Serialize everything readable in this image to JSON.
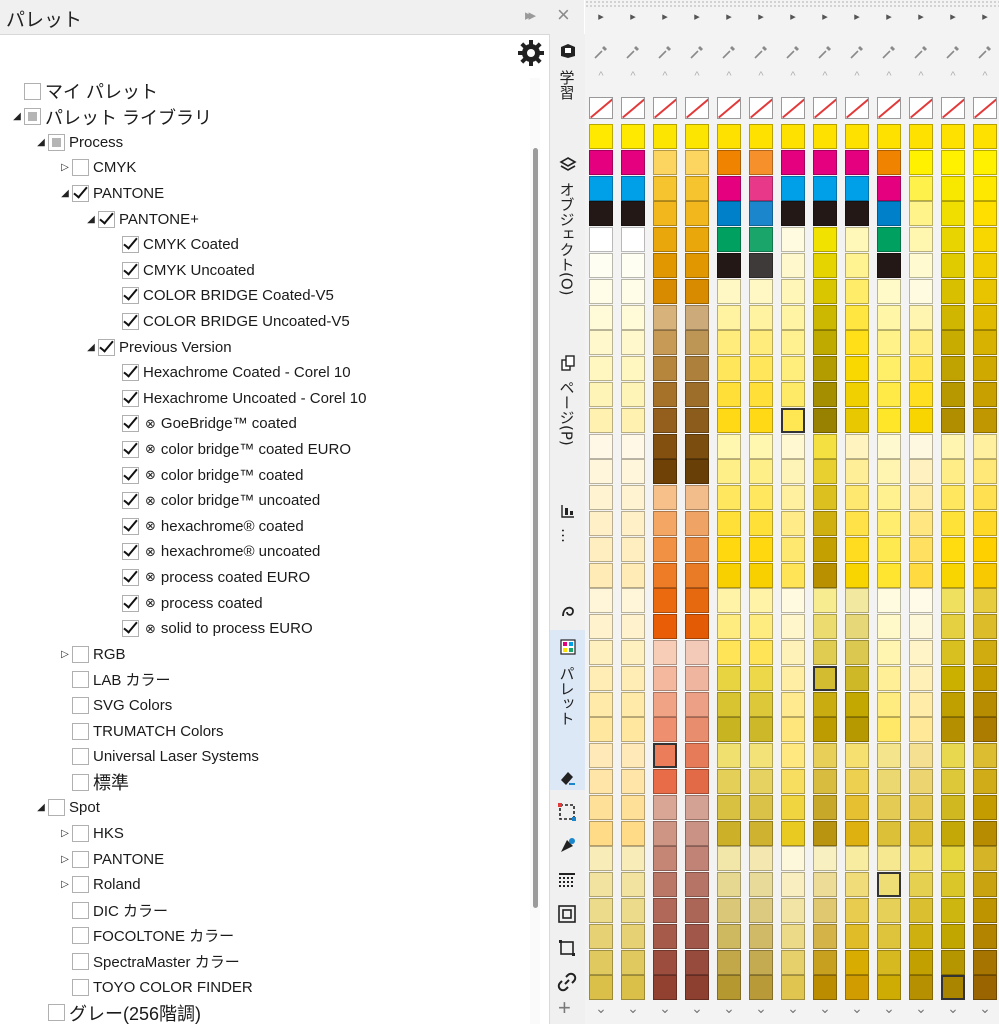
{
  "panel": {
    "title": "パレット",
    "collapse_icon": "double-chevron-right-icon",
    "close_icon": "close-icon",
    "settings_icon": "gear-icon"
  },
  "tree": [
    {
      "label": "マイ パレット",
      "level": 0,
      "expander": "none",
      "check": "unchecked",
      "big": true
    },
    {
      "label": "パレット ライブラリ",
      "level": 0,
      "expander": "expanded",
      "check": "partial",
      "big": true
    },
    {
      "label": "Process",
      "level": 1,
      "expander": "expanded",
      "check": "partial"
    },
    {
      "label": "CMYK",
      "level": 2,
      "expander": "collapsed",
      "check": "unchecked"
    },
    {
      "label": "PANTONE",
      "level": 2,
      "expander": "expanded",
      "check": "checked"
    },
    {
      "label": "PANTONE+",
      "level": 3,
      "expander": "expanded",
      "check": "checked"
    },
    {
      "label": "CMYK Coated",
      "level": 4,
      "expander": "none",
      "check": "checked"
    },
    {
      "label": "CMYK Uncoated",
      "level": 4,
      "expander": "none",
      "check": "checked"
    },
    {
      "label": "COLOR BRIDGE Coated-V5",
      "level": 4,
      "expander": "none",
      "check": "checked"
    },
    {
      "label": "COLOR BRIDGE Uncoated-V5",
      "level": 4,
      "expander": "none",
      "check": "checked"
    },
    {
      "label": "Previous Version",
      "level": 3,
      "expander": "expanded",
      "check": "checked"
    },
    {
      "label": "Hexachrome Coated - Corel 10",
      "level": 4,
      "expander": "none",
      "check": "checked"
    },
    {
      "label": "Hexachrome Uncoated - Corel 10",
      "level": 4,
      "expander": "none",
      "check": "checked"
    },
    {
      "label": "GoeBridge™ coated",
      "level": 4,
      "expander": "none",
      "check": "checked",
      "legacy": true
    },
    {
      "label": "color bridge™ coated EURO",
      "level": 4,
      "expander": "none",
      "check": "checked",
      "legacy": true
    },
    {
      "label": "color bridge™ coated",
      "level": 4,
      "expander": "none",
      "check": "checked",
      "legacy": true
    },
    {
      "label": "color bridge™ uncoated",
      "level": 4,
      "expander": "none",
      "check": "checked",
      "legacy": true
    },
    {
      "label": "hexachrome® coated",
      "level": 4,
      "expander": "none",
      "check": "checked",
      "legacy": true
    },
    {
      "label": "hexachrome® uncoated",
      "level": 4,
      "expander": "none",
      "check": "checked",
      "legacy": true
    },
    {
      "label": "process coated EURO",
      "level": 4,
      "expander": "none",
      "check": "checked",
      "legacy": true
    },
    {
      "label": "process coated",
      "level": 4,
      "expander": "none",
      "check": "checked",
      "legacy": true
    },
    {
      "label": "solid to process EURO",
      "level": 4,
      "expander": "none",
      "check": "checked",
      "legacy": true
    },
    {
      "label": "RGB",
      "level": 2,
      "expander": "collapsed",
      "check": "unchecked"
    },
    {
      "label": "LAB カラー",
      "level": 2,
      "expander": "none",
      "check": "unchecked"
    },
    {
      "label": "SVG Colors",
      "level": 2,
      "expander": "none",
      "check": "unchecked"
    },
    {
      "label": "TRUMATCH Colors",
      "level": 2,
      "expander": "none",
      "check": "unchecked"
    },
    {
      "label": "Universal Laser Systems",
      "level": 2,
      "expander": "none",
      "check": "unchecked"
    },
    {
      "label": "標準",
      "level": 2,
      "expander": "none",
      "check": "unchecked",
      "big": true
    },
    {
      "label": "Spot",
      "level": 1,
      "expander": "expanded",
      "check": "unchecked"
    },
    {
      "label": "HKS",
      "level": 2,
      "expander": "collapsed",
      "check": "unchecked"
    },
    {
      "label": "PANTONE",
      "level": 2,
      "expander": "collapsed",
      "check": "unchecked"
    },
    {
      "label": "Roland",
      "level": 2,
      "expander": "collapsed",
      "check": "unchecked"
    },
    {
      "label": "DIC カラー",
      "level": 2,
      "expander": "none",
      "check": "unchecked"
    },
    {
      "label": "FOCOLTONE カラー",
      "level": 2,
      "expander": "none",
      "check": "unchecked"
    },
    {
      "label": "SpectraMaster カラー",
      "level": 2,
      "expander": "none",
      "check": "unchecked"
    },
    {
      "label": "TOYO COLOR FINDER",
      "level": 2,
      "expander": "none",
      "check": "unchecked"
    },
    {
      "label": "グレー(256階調)",
      "level": 1,
      "expander": "none",
      "check": "unchecked",
      "big": true
    }
  ],
  "tabs": {
    "learn": "学習",
    "objects": "オブジェクト(O)",
    "pages": "ページ(P)",
    "more": "…",
    "palette": "パレット"
  },
  "tab_icons": [
    "cap-icon",
    "layers-icon",
    "pages-icon",
    "align-icon",
    "curve-icon",
    "palette-icon"
  ],
  "tool_icons": [
    "eraser-icon",
    "transform-icon",
    "fill-icon",
    "grid-icon",
    "frame-icon",
    "crop-icon",
    "link-icon",
    "add-icon"
  ],
  "palette_columns": [
    [
      "#ffe900",
      "#e4007f",
      "#00a0e9",
      "#231815",
      "#ffffff",
      "#fffef3",
      "#fffde8",
      "#fffbd8",
      "#fff8cc",
      "#fff6c0",
      "#fff4b8",
      "#fff2b0",
      "#fff8e6",
      "#fff6dc",
      "#fff3d2",
      "#fff0c8",
      "#ffeebf",
      "#ffebb5",
      "#fff5d8",
      "#fff2cc",
      "#fff0c0",
      "#ffedb5",
      "#ffeaaa",
      "#ffe7a0",
      "#ffe9b8",
      "#ffe5a8",
      "#ffe098",
      "#ffdb88",
      "#f8ecb8",
      "#f2e3a0",
      "#ecdb8a",
      "#e6d274",
      "#e0c95e",
      "#dac048"
    ],
    [
      "#ffe900",
      "#e4007f",
      "#00a0e9",
      "#231815",
      "#ffffff",
      "#fffef3",
      "#fffde8",
      "#fffbd8",
      "#fff8cc",
      "#fff6c0",
      "#fff4b8",
      "#fff2b0",
      "#fff8e6",
      "#fff6dc",
      "#fff3d2",
      "#fff0c8",
      "#ffeebf",
      "#ffebb5",
      "#fff5d8",
      "#fff2cc",
      "#fff0c0",
      "#ffedb5",
      "#ffeaaa",
      "#ffe7a0",
      "#ffe9b8",
      "#ffe5a8",
      "#ffe098",
      "#ffdb88",
      "#f8ecb8",
      "#f2e3a0",
      "#ecdb8a",
      "#e6d274",
      "#e0c95e",
      "#dac048"
    ],
    [
      "#fce500",
      "#fbd560",
      "#f6c42e",
      "#f1b71c",
      "#e9a70c",
      "#e19800",
      "#d98b00",
      "#d7b27a",
      "#c79a55",
      "#b6863c",
      "#a6722a",
      "#945f1c",
      "#83500f",
      "#6f4107",
      "#f7c08a",
      "#f4a765",
      "#f19144",
      "#ee7c26",
      "#eb6a10",
      "#e85d05",
      "#f7cdb7",
      "#f4b89f",
      "#f1a386",
      "#ee8f6f",
      "#eb7d5a",
      "#e86c47",
      "#d9a594",
      "#cf9584",
      "#c58675",
      "#bb7766",
      "#b16858",
      "#a65a4a",
      "#9c4d3d",
      "#924030"
    ],
    [
      "#fce500",
      "#fbd560",
      "#f6c42e",
      "#f1b71c",
      "#e9a70c",
      "#e19800",
      "#d98b00",
      "#ccaa7a",
      "#bd9555",
      "#ad813c",
      "#9d6e2a",
      "#8c5c1c",
      "#7b4e0f",
      "#684007",
      "#f2bd8a",
      "#efa465",
      "#ec8e44",
      "#e97a26",
      "#e66910",
      "#e35c05",
      "#f2cab7",
      "#efb59f",
      "#eca186",
      "#e98d6f",
      "#e67b5a",
      "#e36a47",
      "#d4a294",
      "#ca9284",
      "#c08375",
      "#b67466",
      "#ac6658",
      "#a1584a",
      "#974b3d",
      "#8d3f30"
    ],
    [
      "#ffe100",
      "#f08300",
      "#e4007f",
      "#0080c8",
      "#00a160",
      "#231815",
      "#fff8c4",
      "#fff2a0",
      "#ffec7c",
      "#ffe65a",
      "#ffdf38",
      "#ffd816",
      "#fff6b0",
      "#ffef88",
      "#ffe860",
      "#ffe038",
      "#ffd810",
      "#f8d000",
      "#fff3a8",
      "#ffec80",
      "#ffe458",
      "#e8d440",
      "#d8c430",
      "#c8b420",
      "#f0e070",
      "#e4d058",
      "#d8c040",
      "#ccb028",
      "#f2e6a8",
      "#e6d890",
      "#dac878",
      "#ceb860",
      "#c2a848",
      "#b69830"
    ],
    [
      "#ffe100",
      "#f5902a",
      "#e8388a",
      "#1b86cc",
      "#1aa66a",
      "#3e3a39",
      "#fff8c4",
      "#fff2a0",
      "#ffec7c",
      "#ffe65a",
      "#ffdf38",
      "#ffd816",
      "#fff6b0",
      "#ffef88",
      "#ffe860",
      "#ffe038",
      "#ffd810",
      "#f8d000",
      "#fff3a8",
      "#ffec80",
      "#ffe458",
      "#ecd848",
      "#dcc838",
      "#ccb828",
      "#f2e278",
      "#e6d260",
      "#dac248",
      "#ceb230",
      "#f4e8b0",
      "#e8da98",
      "#dcca80",
      "#d0ba68",
      "#c4aa50",
      "#b89a38"
    ],
    [
      "#ffe100",
      "#e4007f",
      "#00a0e9",
      "#231815",
      "#fffbe0",
      "#fff8cc",
      "#fff6b8",
      "#fff3a4",
      "#fff090",
      "#ffed7c",
      "#ffea68",
      "#ffe754",
      "#fff8d0",
      "#fff4b8",
      "#fff0a0",
      "#ffec88",
      "#ffe870",
      "#ffe458",
      "#fffae0",
      "#fff6cc",
      "#fff2b8",
      "#ffeea4",
      "#ffea90",
      "#ffe67c",
      "#ffe880",
      "#f8de60",
      "#f0d440",
      "#e8ca20",
      "#fdf7dc",
      "#f8eec0",
      "#f2e4a4",
      "#ecda88",
      "#e6d06c",
      "#e0c650"
    ],
    [
      "#ffe100",
      "#e4007f",
      "#00a0e9",
      "#231815",
      "#f2e200",
      "#e6d400",
      "#d9c600",
      "#ccb800",
      "#bfaa00",
      "#b29c00",
      "#a58e00",
      "#988000",
      "#f4e040",
      "#e8d030",
      "#dcc020",
      "#d0b010",
      "#c4a000",
      "#b89000",
      "#f8ec90",
      "#ecdc70",
      "#e0cc50",
      "#d4bc30",
      "#c8ac10",
      "#bc9c00",
      "#e8d058",
      "#d8bc40",
      "#c8a828",
      "#b89410",
      "#f8f0c0",
      "#ecdc98",
      "#e0c870",
      "#d4b448",
      "#c8a020",
      "#bc8c00"
    ],
    [
      "#ffe100",
      "#e4007f",
      "#00a0e9",
      "#231815",
      "#fff8b8",
      "#fff290",
      "#ffec68",
      "#ffe640",
      "#ffe018",
      "#f8d800",
      "#f0d000",
      "#e8c800",
      "#fff4c0",
      "#ffee98",
      "#ffe870",
      "#ffe248",
      "#ffdc20",
      "#f8d400",
      "#f2e8a0",
      "#e6d878",
      "#dac850",
      "#ceb828",
      "#c2a800",
      "#b69800",
      "#f6e070",
      "#eed050",
      "#e6c030",
      "#deb010",
      "#f8eca0",
      "#f0dc78",
      "#e8cc50",
      "#e0bc28",
      "#d8ac00",
      "#d09c00"
    ],
    [
      "#ffe100",
      "#f08300",
      "#e4007f",
      "#0080c8",
      "#00a160",
      "#231815",
      "#fffac8",
      "#fff6a8",
      "#fff288",
      "#ffee68",
      "#ffea48",
      "#ffe628",
      "#fff9d0",
      "#fff5b0",
      "#fff190",
      "#ffed70",
      "#ffe950",
      "#ffe530",
      "#fffbe0",
      "#fff8c8",
      "#fff4b0",
      "#fff098",
      "#ffec80",
      "#ffe868",
      "#f4e48c",
      "#ecd870",
      "#e4cc54",
      "#dcc038",
      "#f6e890",
      "#eedc74",
      "#e6d058",
      "#dec43c",
      "#d6b820",
      "#ceac04"
    ],
    [
      "#ffe100",
      "#fff100",
      "#fff14c",
      "#fff38a",
      "#fff6b0",
      "#fffad0",
      "#fffbe0",
      "#fff4b0",
      "#ffed80",
      "#ffe650",
      "#ffdf20",
      "#f8d400",
      "#fff8e0",
      "#fff2c0",
      "#ffeca0",
      "#ffe680",
      "#ffe060",
      "#ffda40",
      "#fffbe8",
      "#fff8d8",
      "#fff4c8",
      "#fff0b8",
      "#ffeca8",
      "#ffe898",
      "#f4e090",
      "#ecd470",
      "#e4c850",
      "#dcbc30",
      "#f2e070",
      "#e6d050",
      "#dac030",
      "#ceb010",
      "#c2a000",
      "#b69000"
    ],
    [
      "#ffe100",
      "#fff100",
      "#f8e800",
      "#f0de00",
      "#e8d400",
      "#e0ca00",
      "#d8c000",
      "#d0b600",
      "#c8ac00",
      "#c0a200",
      "#b89800",
      "#b08e00",
      "#fff4b0",
      "#ffee88",
      "#ffe860",
      "#ffe238",
      "#ffdc10",
      "#f8d400",
      "#f0e060",
      "#e4d040",
      "#d8c020",
      "#ccb000",
      "#c0a000",
      "#b49000",
      "#e8d850",
      "#dcc838",
      "#d0b820",
      "#c4a808",
      "#e6d640",
      "#dac628",
      "#ceb610",
      "#c2a600",
      "#b69600",
      "#aa8600"
    ],
    [
      "#ffe100",
      "#fff100",
      "#ffe800",
      "#ffdf00",
      "#f8d600",
      "#f0cd00",
      "#e8c400",
      "#e0bb00",
      "#d8b200",
      "#d0a900",
      "#c8a000",
      "#c09700",
      "#fff0a0",
      "#ffe878",
      "#ffe050",
      "#ffd828",
      "#ffd000",
      "#f8c800",
      "#e8cc40",
      "#dcbc28",
      "#d0ac10",
      "#c49c00",
      "#b88c00",
      "#ac7c00",
      "#dcbc30",
      "#d0ac18",
      "#c49c00",
      "#b88c00",
      "#d6b428",
      "#caa410",
      "#be9400",
      "#b28400",
      "#a67400",
      "#9a6400"
    ]
  ],
  "selected_swatches": [
    [
      2,
      24
    ],
    [
      6,
      11
    ],
    [
      7,
      21
    ],
    [
      9,
      29
    ],
    [
      11,
      33
    ]
  ],
  "colors": {
    "accent_tab": "#dde8f7",
    "checkbox_border": "#b0b0b0"
  }
}
